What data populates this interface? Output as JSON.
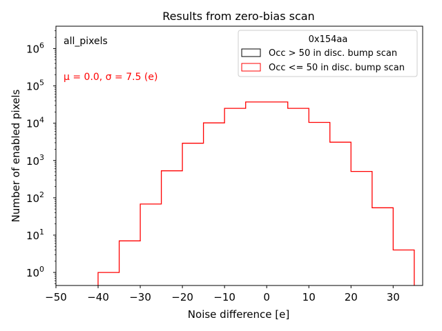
{
  "chart_data": {
    "type": "histogram",
    "title": "Results from zero-bias scan",
    "xlabel": "Noise difference [e]",
    "ylabel": "Number of enabled pixels",
    "xlim": [
      -50,
      37
    ],
    "ylim_log10": [
      -0.35,
      6.6
    ],
    "y_scale": "log",
    "x_ticks": [
      -50,
      -40,
      -30,
      -20,
      -10,
      0,
      10,
      20,
      30
    ],
    "x_tick_labels": [
      "−50",
      "−40",
      "−30",
      "−20",
      "−10",
      "0",
      "10",
      "20",
      "30"
    ],
    "y_ticks_exp": [
      0,
      1,
      2,
      3,
      4,
      5,
      6
    ],
    "y_tick_base": "10",
    "annotations": {
      "label": "all_pixels",
      "stats": "μ = 0.0, σ = 7.5 (e)",
      "stats_color": "#ff0000"
    },
    "legend": {
      "title": "0x154aa",
      "location": "top-right",
      "entries": [
        {
          "label": "Occ > 50 in disc. bump scan",
          "color": "#000000"
        },
        {
          "label": "Occ <= 50 in disc. bump scan",
          "color": "#ff0000"
        }
      ]
    },
    "series": [
      {
        "name": "Occ <= 50 in disc. bump scan",
        "color": "#ff0000",
        "bin_edges": [
          -40,
          -35,
          -30,
          -25,
          -20,
          -15,
          -10,
          -5,
          5,
          10,
          15,
          20,
          25,
          30,
          35
        ],
        "counts": [
          1,
          7,
          68,
          530,
          2900,
          10200,
          25000,
          37000,
          25000,
          10500,
          3100,
          510,
          54,
          4
        ]
      }
    ]
  }
}
